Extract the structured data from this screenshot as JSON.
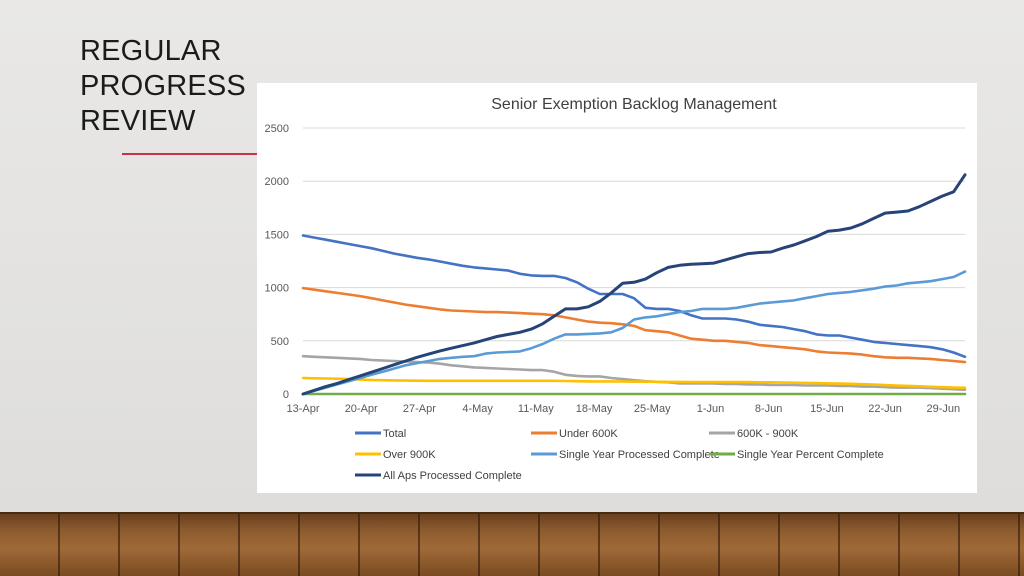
{
  "slide": {
    "title_lines": [
      "REGULAR",
      "PROGRESS",
      "REVIEW"
    ],
    "accent_color": "#c8314b"
  },
  "chart_data": {
    "type": "line",
    "title": "Senior Exemption Backlog Management",
    "xlabel": "",
    "ylabel": "",
    "ylim": [
      0,
      2500
    ],
    "yticks": [
      0,
      500,
      1000,
      1500,
      2000,
      2500
    ],
    "grid": true,
    "legend": "bottom",
    "x_labels": [
      "13-Apr",
      "20-Apr",
      "27-Apr",
      "4-May",
      "11-May",
      "18-May",
      "25-May",
      "1-Jun",
      "8-Jun",
      "15-Jun",
      "22-Jun",
      "29-Jun"
    ],
    "x_points": 59,
    "series": [
      {
        "name": "Total",
        "color": "#4472c4",
        "values": [
          1490,
          1470,
          1450,
          1430,
          1410,
          1390,
          1370,
          1345,
          1320,
          1300,
          1280,
          1265,
          1245,
          1225,
          1205,
          1190,
          1180,
          1170,
          1160,
          1130,
          1115,
          1110,
          1110,
          1090,
          1050,
          990,
          940,
          940,
          940,
          900,
          810,
          800,
          800,
          780,
          740,
          710,
          710,
          710,
          700,
          680,
          650,
          640,
          630,
          610,
          590,
          560,
          550,
          550,
          530,
          510,
          490,
          480,
          470,
          460,
          450,
          440,
          420,
          390,
          350
        ]
      },
      {
        "name": "Under 600K",
        "color": "#ed7d31",
        "values": [
          995,
          980,
          965,
          950,
          935,
          920,
          900,
          880,
          860,
          840,
          825,
          810,
          795,
          785,
          780,
          775,
          770,
          770,
          765,
          760,
          755,
          750,
          740,
          720,
          700,
          680,
          670,
          665,
          655,
          640,
          600,
          590,
          580,
          550,
          520,
          510,
          500,
          500,
          490,
          480,
          460,
          450,
          440,
          430,
          420,
          400,
          390,
          385,
          380,
          370,
          355,
          345,
          340,
          340,
          335,
          330,
          320,
          310,
          300
        ]
      },
      {
        "name": "600K - 900K",
        "color": "#a5a5a5",
        "values": [
          355,
          350,
          345,
          340,
          335,
          330,
          320,
          315,
          310,
          305,
          300,
          295,
          285,
          270,
          260,
          250,
          245,
          240,
          235,
          230,
          225,
          225,
          210,
          180,
          170,
          165,
          165,
          150,
          140,
          130,
          120,
          115,
          110,
          100,
          100,
          100,
          100,
          95,
          95,
          90,
          90,
          85,
          85,
          85,
          80,
          80,
          80,
          75,
          75,
          70,
          70,
          65,
          60,
          60,
          60,
          55,
          50,
          45,
          40
        ]
      },
      {
        "name": "Over 900K",
        "color": "#ffc000",
        "values": [
          150,
          148,
          146,
          144,
          140,
          135,
          132,
          130,
          128,
          126,
          125,
          124,
          124,
          124,
          124,
          124,
          124,
          124,
          124,
          124,
          124,
          124,
          124,
          122,
          120,
          118,
          118,
          118,
          118,
          116,
          116,
          115,
          114,
          114,
          113,
          112,
          112,
          112,
          112,
          112,
          110,
          110,
          108,
          106,
          104,
          102,
          100,
          98,
          96,
          92,
          88,
          84,
          80,
          76,
          72,
          68,
          64,
          60,
          58
        ]
      },
      {
        "name": "Single Year Processed Complete",
        "color": "#5b9bd5",
        "values": [
          0,
          30,
          60,
          90,
          120,
          150,
          180,
          210,
          240,
          270,
          290,
          310,
          330,
          340,
          350,
          355,
          380,
          390,
          395,
          400,
          430,
          470,
          520,
          560,
          560,
          565,
          570,
          580,
          620,
          700,
          720,
          730,
          750,
          770,
          780,
          800,
          800,
          800,
          810,
          830,
          850,
          860,
          870,
          880,
          900,
          920,
          940,
          950,
          960,
          975,
          990,
          1010,
          1020,
          1040,
          1050,
          1060,
          1080,
          1100,
          1150
        ]
      },
      {
        "name": "Single Year Percent Complete",
        "color": "#70ad47",
        "values": [
          0,
          0,
          0,
          0,
          0,
          0,
          0,
          0,
          0,
          0,
          0,
          0,
          0,
          0,
          0,
          0,
          0,
          0,
          0,
          0,
          0,
          0,
          0,
          0,
          0,
          0,
          0,
          0,
          0,
          0,
          0,
          0,
          0,
          0,
          0,
          0,
          0,
          0,
          0,
          0,
          0,
          0,
          0,
          0,
          0,
          0,
          0,
          0,
          0,
          0,
          0,
          0,
          0,
          0,
          0,
          0,
          0,
          0,
          0
        ]
      },
      {
        "name": "All Aps Processed Complete",
        "color": "#264478",
        "values": [
          0,
          35,
          70,
          100,
          135,
          170,
          205,
          240,
          275,
          310,
          345,
          375,
          405,
          430,
          455,
          480,
          510,
          540,
          560,
          580,
          610,
          660,
          730,
          800,
          800,
          820,
          870,
          950,
          1040,
          1050,
          1080,
          1140,
          1190,
          1210,
          1220,
          1225,
          1230,
          1260,
          1290,
          1320,
          1330,
          1335,
          1370,
          1400,
          1440,
          1480,
          1530,
          1540,
          1560,
          1600,
          1650,
          1700,
          1710,
          1720,
          1760,
          1810,
          1860,
          1900,
          2060
        ]
      }
    ]
  }
}
